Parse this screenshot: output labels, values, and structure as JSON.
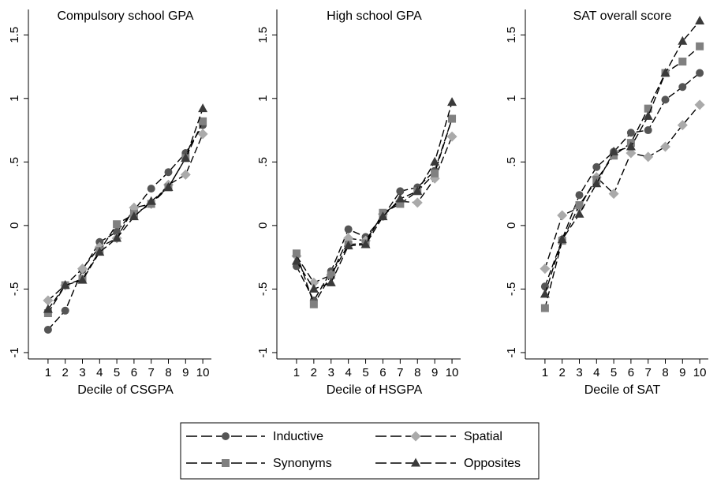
{
  "chart_data": [
    {
      "type": "line",
      "title": "Compulsory school GPA",
      "xlabel": "Decile of CSGPA",
      "ylabel": "",
      "x": [
        1,
        2,
        3,
        4,
        5,
        6,
        7,
        8,
        9,
        10
      ],
      "xticks": [
        "1",
        "2",
        "3",
        "4",
        "5",
        "6",
        "7",
        "8",
        "9",
        "10"
      ],
      "yticks": [
        -1,
        -0.5,
        0,
        0.5,
        1,
        1.5
      ],
      "ytick_labels": [
        "-1",
        "-.5",
        "0",
        ".5",
        "1",
        "1.5"
      ],
      "ylim": [
        -1.05,
        1.7
      ],
      "grid": false,
      "series": [
        {
          "name": "Inductive",
          "values": [
            -0.82,
            -0.67,
            -0.35,
            -0.13,
            -0.05,
            0.12,
            0.29,
            0.42,
            0.57,
            0.79
          ]
        },
        {
          "name": "Spatial",
          "values": [
            -0.59,
            -0.47,
            -0.34,
            -0.17,
            -0.1,
            0.14,
            0.17,
            0.32,
            0.4,
            0.72
          ]
        },
        {
          "name": "Synonyms",
          "values": [
            -0.69,
            -0.47,
            -0.42,
            -0.2,
            0.01,
            0.09,
            0.17,
            0.3,
            0.53,
            0.82
          ]
        },
        {
          "name": "Opposites",
          "values": [
            -0.66,
            -0.47,
            -0.43,
            -0.21,
            -0.1,
            0.07,
            0.19,
            0.3,
            0.53,
            0.92
          ]
        }
      ]
    },
    {
      "type": "line",
      "title": "High school GPA",
      "xlabel": "Decile of HSGPA",
      "ylabel": "",
      "x": [
        1,
        2,
        3,
        4,
        5,
        6,
        7,
        8,
        9,
        10
      ],
      "xticks": [
        "1",
        "2",
        "3",
        "4",
        "5",
        "6",
        "7",
        "8",
        "9",
        "10"
      ],
      "yticks": [
        -1,
        -0.5,
        0,
        0.5,
        1,
        1.5
      ],
      "ytick_labels": [
        "-1",
        "-.5",
        "0",
        ".5",
        "1",
        "1.5"
      ],
      "ylim": [
        -1.05,
        1.7
      ],
      "grid": false,
      "series": [
        {
          "name": "Inductive",
          "values": [
            -0.32,
            -0.59,
            -0.36,
            -0.03,
            -0.09,
            0.07,
            0.27,
            0.3,
            0.43,
            0.84
          ]
        },
        {
          "name": "Spatial",
          "values": [
            -0.24,
            -0.45,
            -0.39,
            -0.1,
            -0.12,
            0.09,
            0.19,
            0.18,
            0.37,
            0.7
          ]
        },
        {
          "name": "Synonyms",
          "values": [
            -0.22,
            -0.62,
            -0.39,
            -0.15,
            -0.14,
            0.1,
            0.17,
            0.27,
            0.41,
            0.84
          ]
        },
        {
          "name": "Opposites",
          "values": [
            -0.28,
            -0.5,
            -0.45,
            -0.16,
            -0.15,
            0.07,
            0.21,
            0.27,
            0.5,
            0.97
          ]
        }
      ]
    },
    {
      "type": "line",
      "title": "SAT overall score",
      "xlabel": "Decile of SAT",
      "ylabel": "",
      "x": [
        1,
        2,
        3,
        4,
        5,
        6,
        7,
        8,
        9,
        10
      ],
      "xticks": [
        "1",
        "2",
        "3",
        "4",
        "5",
        "6",
        "7",
        "8",
        "9",
        "10"
      ],
      "yticks": [
        -1,
        -0.5,
        0,
        0.5,
        1,
        1.5
      ],
      "ytick_labels": [
        "-1",
        "-.5",
        "0",
        ".5",
        "1",
        "1.5"
      ],
      "ylim": [
        -1.05,
        1.7
      ],
      "grid": false,
      "series": [
        {
          "name": "Inductive",
          "values": [
            -0.48,
            -0.11,
            0.24,
            0.46,
            0.58,
            0.73,
            0.75,
            0.99,
            1.09,
            1.2
          ]
        },
        {
          "name": "Spatial",
          "values": [
            -0.34,
            0.08,
            0.14,
            0.38,
            0.25,
            0.57,
            0.54,
            0.62,
            0.79,
            0.95
          ]
        },
        {
          "name": "Synonyms",
          "values": [
            -0.65,
            -0.12,
            0.16,
            0.36,
            0.55,
            0.65,
            0.92,
            1.2,
            1.29,
            1.41
          ]
        },
        {
          "name": "Opposites",
          "values": [
            -0.54,
            -0.11,
            0.09,
            0.33,
            0.58,
            0.62,
            0.86,
            1.2,
            1.45,
            1.61
          ]
        }
      ]
    }
  ],
  "series_styles": [
    {
      "name": "Inductive",
      "marker": "circle",
      "color": "#555555"
    },
    {
      "name": "Spatial",
      "marker": "diamond",
      "color": "#aaaaaa"
    },
    {
      "name": "Synonyms",
      "marker": "square",
      "color": "#808080"
    },
    {
      "name": "Opposites",
      "marker": "triangle",
      "color": "#3a3a3a"
    }
  ],
  "legend": {
    "placement": "bottom-center",
    "items": [
      "Inductive",
      "Spatial",
      "Synonyms",
      "Opposites"
    ]
  }
}
